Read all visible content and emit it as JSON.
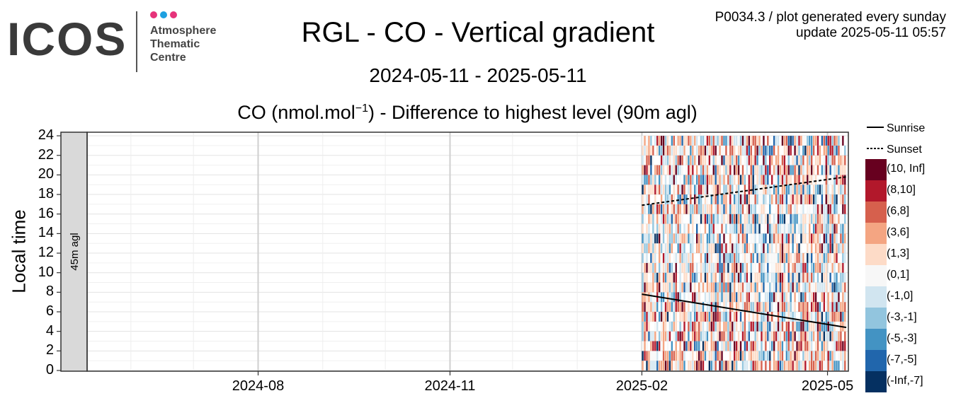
{
  "logo": {
    "wordmark": "ICOS",
    "line1": "Atmosphere",
    "line2": "Thematic",
    "line3": "Centre",
    "dot_colors": [
      "#e6337a",
      "#1ea0e0",
      "#e6337a"
    ]
  },
  "header": {
    "title": "RGL - CO - Vertical gradient",
    "period": "2024-05-11 - 2025-05-11",
    "meta_line1": "P0034.3 / plot generated every sunday",
    "meta_line2": "update  2025-05-11 05:57"
  },
  "chart_data": {
    "type": "heatmap",
    "title": "CO (nmol.mol⁻¹) - Difference to highest level (90m agl)",
    "title_main": "CO (nmol.mol",
    "title_sup": "−1",
    "title_rest": ") - Difference to highest level (90m agl)",
    "ylabel": "Local time",
    "xlabel": "",
    "panel_strip": "45m agl",
    "x_range": [
      "2024-05-11",
      "2025-05-11"
    ],
    "y_range": [
      0,
      24
    ],
    "x_ticks": [
      "2024-08",
      "2024-11",
      "2025-02",
      "2025-05"
    ],
    "y_ticks": [
      0,
      2,
      4,
      6,
      8,
      10,
      12,
      14,
      16,
      18,
      20,
      22,
      24
    ],
    "data_start": "2025-02-01",
    "data_end": "2025-05-10",
    "sunrise": {
      "start": [
        "2025-02-01",
        7.8
      ],
      "end": [
        "2025-05-10",
        4.4
      ]
    },
    "sunset": {
      "start": [
        "2025-02-01",
        16.9
      ],
      "end": [
        "2025-05-10",
        19.8
      ]
    },
    "line_legend": [
      {
        "label": "Sunrise",
        "style": "solid"
      },
      {
        "label": "Sunset",
        "style": "dashed"
      }
    ],
    "color_bins": [
      {
        "label": "(10, Inf]",
        "color": "#67001f"
      },
      {
        "label": "(8,10]",
        "color": "#b2182b"
      },
      {
        "label": "(6,8]",
        "color": "#d6604d"
      },
      {
        "label": "(3,6]",
        "color": "#f4a582"
      },
      {
        "label": "(1,3]",
        "color": "#fddbc7"
      },
      {
        "label": "(0,1]",
        "color": "#f7f7f7"
      },
      {
        "label": "(-1,0]",
        "color": "#d1e5f0"
      },
      {
        "label": "(-3,-1]",
        "color": "#92c5de"
      },
      {
        "label": "(-5,-3]",
        "color": "#4393c3"
      },
      {
        "label": "(-7,-5]",
        "color": "#2166ac"
      },
      {
        "label": "(-Inf,-7]",
        "color": "#053061"
      }
    ],
    "grid": true
  }
}
